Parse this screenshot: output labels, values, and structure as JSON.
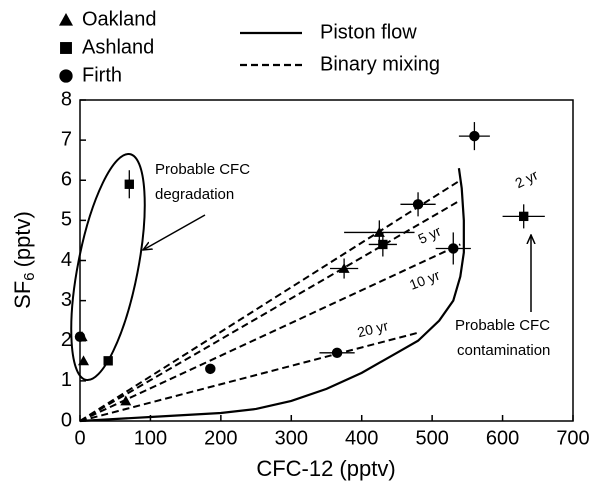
{
  "chart_data": {
    "type": "scatter",
    "xlabel": "CFC-12 (pptv)",
    "ylabel": {
      "base": "SF",
      "sub": "6",
      "unit": "(pptv)"
    },
    "xlim": [
      0,
      700
    ],
    "xticks": [
      0,
      100,
      200,
      300,
      400,
      500,
      600,
      700
    ],
    "ylim": [
      0,
      8
    ],
    "yticks": [
      0,
      1,
      2,
      3,
      4,
      5,
      6,
      7,
      8
    ],
    "grid": false,
    "series": [
      {
        "name": "Oakland",
        "marker": "triangle",
        "color": "#000000",
        "x": [
          3,
          5,
          65,
          375,
          425
        ],
        "y": [
          2.1,
          1.5,
          0.5,
          3.8,
          4.7
        ],
        "xerr": [
          null,
          null,
          null,
          20,
          50
        ],
        "yerr": [
          null,
          null,
          null,
          0.25,
          0.3
        ]
      },
      {
        "name": "Ashland",
        "marker": "square",
        "color": "#000000",
        "x": [
          70,
          40,
          430,
          630
        ],
        "y": [
          5.9,
          1.5,
          4.4,
          5.1
        ],
        "xerr": [
          null,
          null,
          20,
          30
        ],
        "yerr": [
          0.35,
          null,
          0.3,
          0.3
        ]
      },
      {
        "name": "Firth",
        "marker": "circle",
        "color": "#000000",
        "x": [
          0,
          185,
          365,
          480,
          530,
          560
        ],
        "y": [
          2.1,
          1.3,
          1.7,
          5.4,
          4.3,
          7.1
        ],
        "xerr": [
          null,
          null,
          25,
          25,
          25,
          22
        ],
        "yerr": [
          null,
          null,
          0.1,
          0.3,
          0.4,
          0.35
        ]
      }
    ],
    "piston": {
      "name": "Piston flow",
      "dash": "solid",
      "x": [
        0,
        50,
        100,
        150,
        200,
        250,
        300,
        350,
        400,
        450,
        480,
        510,
        530,
        540,
        545,
        545,
        542,
        538
      ],
      "y": [
        0,
        0.05,
        0.1,
        0.15,
        0.2,
        0.3,
        0.5,
        0.8,
        1.2,
        1.7,
        2.0,
        2.5,
        3.0,
        3.6,
        4.2,
        5.0,
        5.8,
        6.3
      ]
    },
    "mixing": {
      "name": "Binary mixing",
      "dash": "dashed",
      "lines": [
        {
          "label": "2 yr",
          "x": [
            0,
            540
          ],
          "y": [
            0,
            6.0
          ]
        },
        {
          "label": "5 yr",
          "x": [
            0,
            540
          ],
          "y": [
            0,
            5.5
          ]
        },
        {
          "label": "10 yr",
          "x": [
            0,
            540
          ],
          "y": [
            0,
            4.4
          ]
        },
        {
          "label": "20 yr",
          "x": [
            0,
            480
          ],
          "y": [
            0,
            2.2
          ]
        }
      ]
    },
    "annotations": [
      {
        "lines": [
          "Probable CFC",
          "degradation"
        ]
      },
      {
        "lines": [
          "Probable CFC",
          "contamination"
        ]
      }
    ]
  }
}
